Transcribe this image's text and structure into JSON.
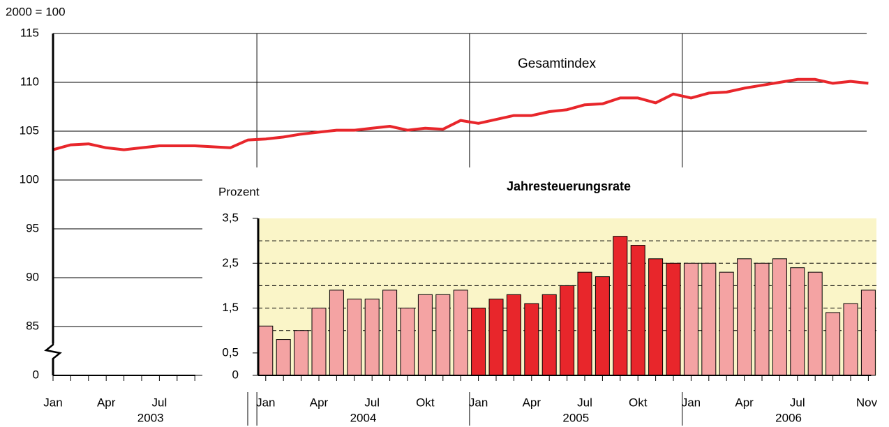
{
  "chart_data": [
    {
      "type": "line",
      "ylabel": "2000 = 100",
      "annotation": "Gesamtindex",
      "color": "#e8262b",
      "years": [
        {
          "label": "2003",
          "months": [
            "Jan",
            null,
            null,
            "Apr",
            null,
            null,
            "Jul",
            null,
            null,
            null,
            null,
            null
          ]
        },
        {
          "label": "2004",
          "months": [
            "Jan",
            null,
            null,
            "Apr",
            null,
            null,
            "Jul",
            null,
            null,
            "Okt",
            null,
            null
          ]
        },
        {
          "label": "2005",
          "months": [
            "Jan",
            null,
            null,
            "Apr",
            null,
            null,
            "Jul",
            null,
            null,
            "Okt",
            null,
            null
          ]
        },
        {
          "label": "2006",
          "months": [
            "Jan",
            null,
            null,
            "Apr",
            null,
            null,
            "Jul",
            null,
            null,
            null,
            "Nov"
          ]
        }
      ],
      "values": [
        103.1,
        103.6,
        103.7,
        103.3,
        103.1,
        103.3,
        103.5,
        103.5,
        103.5,
        103.4,
        103.3,
        104.1,
        104.2,
        104.4,
        104.7,
        104.9,
        105.1,
        105.1,
        105.3,
        105.5,
        105.1,
        105.3,
        105.2,
        106.1,
        105.8,
        106.2,
        106.6,
        106.6,
        107.0,
        107.2,
        107.7,
        107.8,
        108.4,
        108.4,
        107.9,
        108.8,
        108.4,
        108.9,
        109.0,
        109.4,
        109.7,
        110.0,
        110.3,
        110.3,
        109.9,
        110.1,
        109.9
      ],
      "ylim": [
        80,
        115
      ],
      "yticks": [
        {
          "value": 80,
          "label": "0"
        },
        85,
        90,
        95,
        100,
        105,
        110,
        115
      ],
      "axis_break": true,
      "grid": true
    },
    {
      "type": "bar",
      "title": "Jahresteuerungsrate",
      "ylabel": "Prozent",
      "series": [
        {
          "name": "2004",
          "color": "#f4a3a3",
          "values": [
            1.1,
            0.8,
            1.0,
            1.5,
            1.9,
            1.7,
            1.7,
            1.9,
            1.5,
            1.8,
            1.8,
            1.9
          ]
        },
        {
          "name": "2005",
          "color": "#e8262b",
          "values": [
            1.5,
            1.7,
            1.8,
            1.6,
            1.8,
            2.0,
            2.3,
            2.2,
            3.1,
            2.9,
            2.6,
            2.5
          ]
        },
        {
          "name": "2006",
          "color": "#f4a3a3",
          "values": [
            2.5,
            2.5,
            2.3,
            2.6,
            2.5,
            2.6,
            2.4,
            2.3,
            1.4,
            1.6,
            1.9
          ]
        }
      ],
      "ylim": [
        0,
        3.5
      ],
      "yticks": [
        0,
        {
          "value": 0.5,
          "label": "0,5"
        },
        {
          "value": 1.5,
          "label": "1,5"
        },
        {
          "value": 2.5,
          "label": "2,5"
        },
        {
          "value": 3.5,
          "label": "3,5"
        }
      ],
      "grid_lines": [
        1,
        1.5,
        2,
        2.5,
        3
      ],
      "background": "#faf5c8"
    }
  ]
}
